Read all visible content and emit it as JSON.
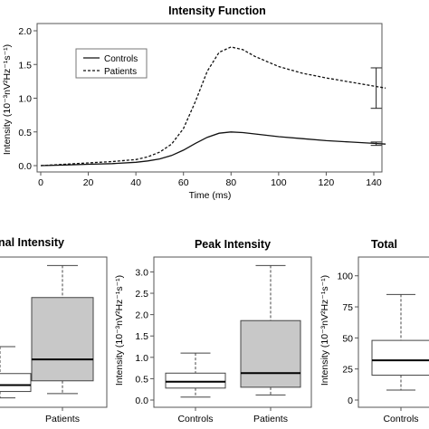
{
  "chart_data": [
    {
      "type": "line",
      "title": "Intensity Function",
      "xlabel": "Time (ms)",
      "ylabel": "Intensity (10⁻³nV²Hz⁻¹s⁻¹)",
      "xlim": [
        0,
        145
      ],
      "ylim": [
        0,
        2.0
      ],
      "xticks": [
        "0",
        "20",
        "40",
        "60",
        "80",
        "100",
        "120",
        "140"
      ],
      "yticks": [
        "0.0",
        "0.5",
        "1.0",
        "1.5",
        "2.0"
      ],
      "legend": [
        "Controls",
        "Patients"
      ],
      "legend_position": "top-left",
      "series": [
        {
          "name": "Controls",
          "style": "solid",
          "x": [
            0,
            10,
            20,
            30,
            40,
            45,
            50,
            55,
            60,
            65,
            70,
            75,
            80,
            85,
            90,
            100,
            110,
            120,
            130,
            140,
            145
          ],
          "y": [
            0.0,
            0.01,
            0.02,
            0.03,
            0.05,
            0.07,
            0.1,
            0.15,
            0.23,
            0.33,
            0.42,
            0.48,
            0.5,
            0.49,
            0.47,
            0.43,
            0.4,
            0.37,
            0.35,
            0.33,
            0.32
          ],
          "error_bar": {
            "x": 141,
            "low": 0.3,
            "high": 0.35
          }
        },
        {
          "name": "Patients",
          "style": "dashed",
          "x": [
            0,
            10,
            20,
            30,
            40,
            45,
            50,
            55,
            60,
            65,
            70,
            75,
            80,
            85,
            90,
            100,
            110,
            120,
            130,
            140,
            145
          ],
          "y": [
            0.0,
            0.02,
            0.04,
            0.06,
            0.09,
            0.13,
            0.2,
            0.32,
            0.55,
            0.95,
            1.4,
            1.68,
            1.76,
            1.72,
            1.62,
            1.47,
            1.37,
            1.3,
            1.24,
            1.18,
            1.15
          ],
          "error_bar": {
            "x": 141,
            "low": 0.85,
            "high": 1.45
          }
        }
      ]
    },
    {
      "type": "box",
      "title": "nal Intensity",
      "categories": [
        "",
        "Patients"
      ],
      "ylim": [
        0,
        3.2
      ],
      "boxes": [
        {
          "min": 0.05,
          "q1": 0.2,
          "median": 0.35,
          "q3": 0.62,
          "max": 1.25
        },
        {
          "min": 0.15,
          "q1": 0.45,
          "median": 0.95,
          "q3": 2.4,
          "max": 3.15
        }
      ]
    },
    {
      "type": "box",
      "title": "Peak Intensity",
      "ylabel": "Intensity (10⁻³nV²Hz⁻¹s⁻¹)",
      "categories": [
        "Controls",
        "Patients"
      ],
      "yticks": [
        "0.0",
        "0.5",
        "1.0",
        "1.5",
        "2.0",
        "2.5",
        "3.0"
      ],
      "ylim": [
        0,
        3.2
      ],
      "boxes": [
        {
          "min": 0.07,
          "q1": 0.28,
          "median": 0.43,
          "q3": 0.63,
          "max": 1.1
        },
        {
          "min": 0.12,
          "q1": 0.3,
          "median": 0.63,
          "q3": 1.86,
          "max": 3.15
        }
      ]
    },
    {
      "type": "box",
      "title": "Total",
      "ylabel": "Intensity (10⁻³nV²Hz⁻¹s⁻¹)",
      "categories": [
        "Controls"
      ],
      "yticks": [
        "0",
        "25",
        "50",
        "75",
        "100"
      ],
      "ylim": [
        0,
        110
      ],
      "boxes": [
        {
          "min": 8,
          "q1": 20,
          "median": 32,
          "q3": 48,
          "max": 85
        }
      ]
    }
  ]
}
